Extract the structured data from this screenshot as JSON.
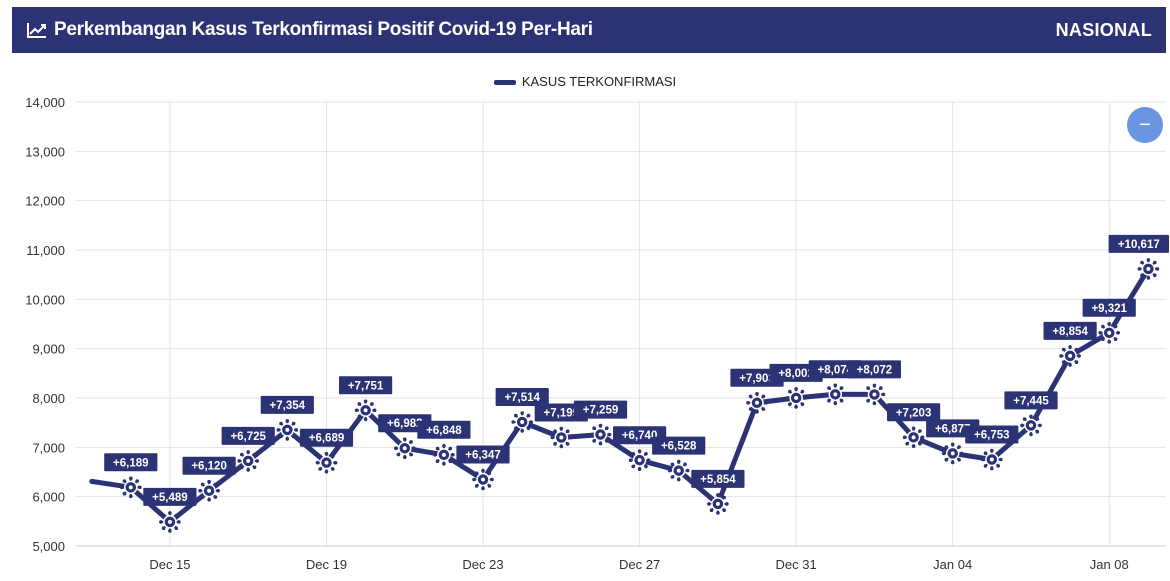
{
  "header": {
    "title": "Perkembangan Kasus Terkonfirmasi Positif Covid-19 Per-Hari",
    "scope": "NASIONAL",
    "icon": "line-chart-icon"
  },
  "legend": {
    "label": "KASUS TERKONFIRMASI"
  },
  "zoom": {
    "label": "−",
    "icon": "zoom-out-icon"
  },
  "colors": {
    "header_bg": "#2b3375",
    "series": "#2b3375",
    "zoom_button": "#6a95e0",
    "grid": "#e3e3e3"
  },
  "chart_data": {
    "type": "line",
    "x": [
      "2020-12-13",
      "2020-12-14",
      "2020-12-15",
      "2020-12-16",
      "2020-12-17",
      "2020-12-18",
      "2020-12-19",
      "2020-12-20",
      "2020-12-21",
      "2020-12-22",
      "2020-12-23",
      "2020-12-24",
      "2020-12-25",
      "2020-12-26",
      "2020-12-27",
      "2020-12-28",
      "2020-12-29",
      "2020-12-30",
      "2020-12-31",
      "2021-01-01",
      "2021-01-02",
      "2021-01-03",
      "2021-01-04",
      "2021-01-05",
      "2021-01-06",
      "2021-01-07",
      "2021-01-08",
      "2021-01-09"
    ],
    "series": [
      {
        "name": "KASUS TERKONFIRMASI",
        "values": [
          6310,
          6189,
          5489,
          6120,
          6725,
          7354,
          6689,
          7751,
          6982,
          6848,
          6347,
          7514,
          7199,
          7259,
          6740,
          6528,
          5854,
          7903,
          8002,
          8074,
          8072,
          7203,
          6877,
          6753,
          7445,
          8854,
          9321,
          10617
        ],
        "labels": [
          "",
          "+6,189",
          "+5,489",
          "+6,120",
          "+6,725",
          "+7,354",
          "+6,689",
          "+7,751",
          "+6,982",
          "+6,848",
          "+6,347",
          "+7,514",
          "+7,199",
          "+7,259",
          "+6,740",
          "+6,528",
          "+5,854",
          "+7,903",
          "+8,002",
          "+8,074",
          "+8,072",
          "+7,203",
          "+6,877",
          "+6,753",
          "+7,445",
          "+8,854",
          "+9,321",
          "+10,617"
        ]
      }
    ],
    "x_ticks": [
      {
        "label": "Dec 15",
        "at": "2020-12-15"
      },
      {
        "label": "Dec 19",
        "at": "2020-12-19"
      },
      {
        "label": "Dec 23",
        "at": "2020-12-23"
      },
      {
        "label": "Dec 27",
        "at": "2020-12-27"
      },
      {
        "label": "Dec 31",
        "at": "2020-12-31"
      },
      {
        "label": "Jan 04",
        "at": "2021-01-04"
      },
      {
        "label": "Jan 08",
        "at": "2021-01-08"
      }
    ],
    "y_ticks": [
      "5,000",
      "6,000",
      "7,000",
      "8,000",
      "9,000",
      "10,000",
      "11,000",
      "12,000",
      "13,000",
      "14,000"
    ],
    "ylim": [
      5000,
      14000
    ],
    "grid": true,
    "legend_position": "top-center"
  }
}
